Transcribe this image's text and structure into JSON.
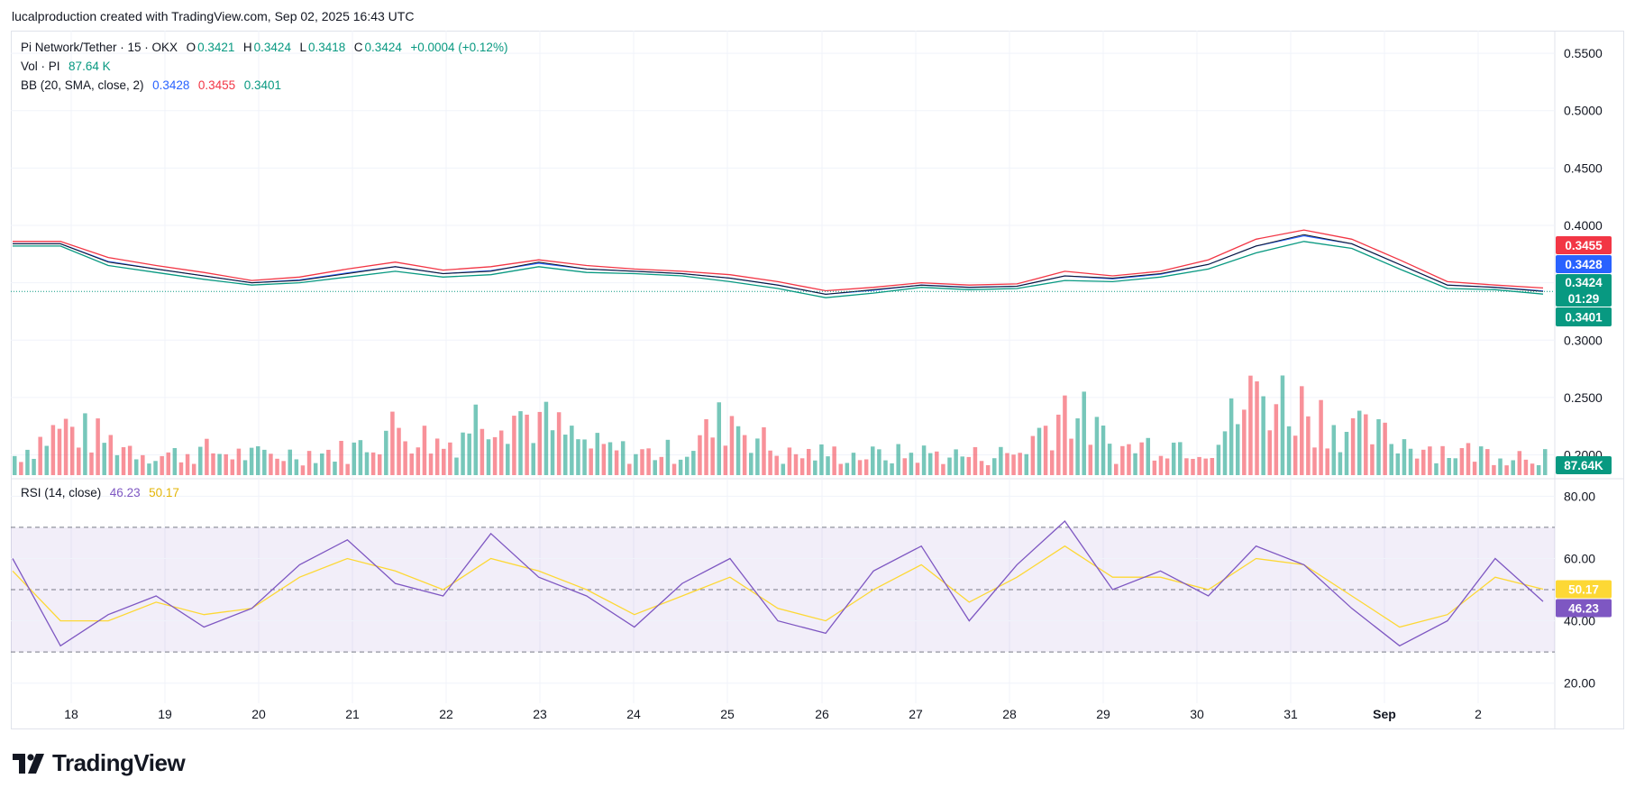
{
  "header": {
    "attribution": "lucalproduction created with TradingView.com, Sep 02, 2025 16:43 UTC"
  },
  "legend": {
    "symbol": "Pi Network/Tether · 15 · OKX",
    "o_label": "O",
    "o_value": "0.3421",
    "h_label": "H",
    "h_value": "0.3424",
    "l_label": "L",
    "l_value": "0.3418",
    "c_label": "C",
    "c_value": "0.3424",
    "change": "+0.0004 (+0.12%)",
    "vol_label": "Vol · PI",
    "vol_value": "87.64 K",
    "bb_label": "BB (20, SMA, close, 2)",
    "bb_basis": "0.3428",
    "bb_upper": "0.3455",
    "bb_lower": "0.3401",
    "rsi_label": "RSI (14, close)",
    "rsi_value": "46.23",
    "rsi_ma": "50.17"
  },
  "price_axis": {
    "ticks": [
      "0.5500",
      "0.5000",
      "0.4500",
      "0.4000",
      "0.3500",
      "0.3000",
      "0.2500",
      "0.2000"
    ],
    "tags": {
      "upper": "0.3455",
      "basis": "0.3428",
      "last": "0.3424",
      "countdown": "01:29",
      "lower": "0.3401",
      "volume": "87.64K"
    }
  },
  "rsi_axis": {
    "ticks": [
      "80.00",
      "60.00",
      "40.00",
      "20.00"
    ],
    "tags": {
      "ma": "50.17",
      "rsi": "46.23"
    }
  },
  "time_axis": {
    "labels": [
      "18",
      "19",
      "20",
      "21",
      "22",
      "23",
      "24",
      "25",
      "26",
      "27",
      "28",
      "29",
      "30",
      "31",
      "Sep",
      "2"
    ]
  },
  "colors": {
    "up": "#089981",
    "down": "#f23645",
    "bb_basis": "#2962ff",
    "bb_upper": "#f23645",
    "bb_lower": "#089981",
    "rsi": "#7e57c2",
    "rsi_ma": "#fdd835",
    "rsi_band": "#7e57c2"
  },
  "footer": {
    "brand": "TradingView"
  },
  "chart_data": {
    "type": "line",
    "title": "",
    "xlabel": "",
    "ylabel": "",
    "x": [
      "Aug 17 12:00",
      "Aug 18",
      "Aug 18 12:00",
      "Aug 19",
      "Aug 19 12:00",
      "Aug 20",
      "Aug 20 12:00",
      "Aug 21",
      "Aug 21 12:00",
      "Aug 22",
      "Aug 22 12:00",
      "Aug 23",
      "Aug 23 12:00",
      "Aug 24",
      "Aug 24 12:00",
      "Aug 25",
      "Aug 25 12:00",
      "Aug 26",
      "Aug 26 12:00",
      "Aug 27",
      "Aug 27 12:00",
      "Aug 28",
      "Aug 28 12:00",
      "Aug 29",
      "Aug 29 12:00",
      "Aug 30",
      "Aug 30 12:00",
      "Aug 31",
      "Aug 31 12:00",
      "Sep 1",
      "Sep 1 12:00",
      "Sep 2",
      "Sep 2 12:00"
    ],
    "series": [
      {
        "name": "",
        "values": [
          0.384,
          0.384,
          0.368,
          0.362,
          0.356,
          0.35,
          0.352,
          0.358,
          0.364,
          0.358,
          0.36,
          0.368,
          0.362,
          0.36,
          0.358,
          0.354,
          0.348,
          0.34,
          0.344,
          0.348,
          0.346,
          0.347,
          0.356,
          0.354,
          0.358,
          0.366,
          0.382,
          0.392,
          0.384,
          0.366,
          0.348,
          0.346,
          0.3424
        ]
      },
      {
        "name": "",
        "values": [
          0.386,
          0.386,
          0.372,
          0.365,
          0.359,
          0.352,
          0.355,
          0.362,
          0.368,
          0.361,
          0.364,
          0.37,
          0.365,
          0.362,
          0.36,
          0.357,
          0.351,
          0.343,
          0.346,
          0.35,
          0.348,
          0.349,
          0.36,
          0.356,
          0.36,
          0.37,
          0.388,
          0.396,
          0.388,
          0.37,
          0.351,
          0.348,
          0.3455
        ]
      },
      {
        "name": "",
        "values": [
          0.382,
          0.382,
          0.365,
          0.359,
          0.353,
          0.348,
          0.35,
          0.355,
          0.36,
          0.355,
          0.357,
          0.364,
          0.359,
          0.358,
          0.356,
          0.351,
          0.345,
          0.337,
          0.341,
          0.346,
          0.344,
          0.345,
          0.352,
          0.351,
          0.355,
          0.362,
          0.376,
          0.386,
          0.38,
          0.362,
          0.345,
          0.344,
          0.3401
        ]
      },
      {
        "name": "",
        "values": [
          8,
          20,
          14,
          8,
          10,
          8,
          9,
          10,
          20,
          12,
          30,
          22,
          12,
          9,
          10,
          25,
          8,
          9,
          8,
          9,
          8,
          9,
          30,
          10,
          14,
          12,
          35,
          28,
          18,
          14,
          10,
          9,
          8.764
        ]
      },
      {
        "name": "",
        "values": [
          60,
          32,
          42,
          48,
          38,
          44,
          58,
          66,
          52,
          48,
          68,
          54,
          48,
          38,
          52,
          60,
          40,
          36,
          56,
          64,
          40,
          58,
          72,
          50,
          56,
          48,
          64,
          58,
          44,
          32,
          40,
          60,
          46.23
        ]
      },
      {
        "name": "",
        "values": [
          56,
          40,
          40,
          46,
          42,
          44,
          54,
          60,
          56,
          50,
          60,
          56,
          50,
          42,
          48,
          54,
          44,
          40,
          50,
          58,
          46,
          54,
          64,
          54,
          54,
          50,
          60,
          58,
          48,
          38,
          42,
          54,
          50.17
        ]
      }
    ],
    "price_ylim": [
      0.18,
      0.565
    ],
    "rsi_ylim": [
      15,
      83
    ],
    "rsi_bands": [
      30,
      50,
      70
    ],
    "grid": true
  }
}
